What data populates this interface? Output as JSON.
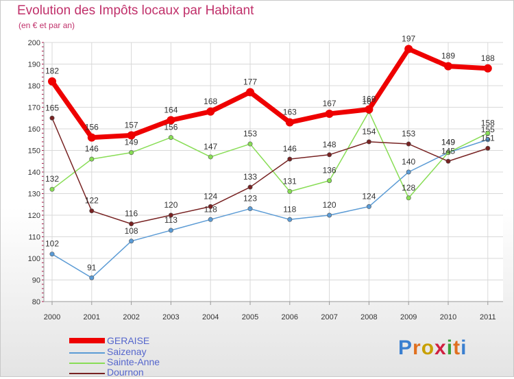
{
  "title": "Evolution des Impôts locaux par Habitant",
  "subtitle": "(en € et par an)",
  "logo": "Proxiti",
  "chart_data": {
    "type": "line",
    "title": "Evolution des Impôts locaux par Habitant",
    "ylabel": "(en € et par an)",
    "xlabel": "",
    "ylim": [
      80,
      200
    ],
    "yticks": [
      80,
      90,
      100,
      110,
      120,
      130,
      140,
      150,
      160,
      170,
      180,
      190,
      200
    ],
    "grid": true,
    "legend": "bottom-left",
    "x": [
      "2000",
      "2001",
      "2002",
      "2003",
      "2004",
      "2005",
      "2006",
      "2007",
      "2008",
      "2009",
      "2010",
      "2011"
    ],
    "series": [
      {
        "name": "GERAISE",
        "color": "#ee0000",
        "values": [
          182,
          156,
          157,
          164,
          168,
          177,
          163,
          167,
          169,
          197,
          189,
          188
        ]
      },
      {
        "name": "Saizenay",
        "color": "#5b9bd5",
        "values": [
          102,
          91,
          108,
          113,
          118,
          123,
          118,
          120,
          124,
          140,
          149,
          155
        ]
      },
      {
        "name": "Sainte-Anne",
        "color": "#88dd55",
        "values": [
          132,
          146,
          149,
          156,
          147,
          153,
          131,
          136,
          168,
          128,
          149,
          158
        ]
      },
      {
        "name": "Dournon",
        "color": "#772222",
        "values": [
          165,
          122,
          116,
          120,
          124,
          133,
          146,
          148,
          154,
          153,
          145,
          151
        ]
      }
    ]
  }
}
